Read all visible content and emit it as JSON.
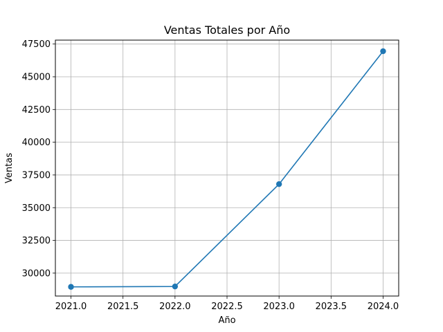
{
  "chart_data": {
    "type": "line",
    "title": "Ventas Totales por Año",
    "xlabel": "Año",
    "ylabel": "Ventas",
    "x": [
      2021,
      2022,
      2023,
      2024
    ],
    "series": [
      {
        "values": [
          28950,
          28980,
          36800,
          46950
        ],
        "color": "#1f77b4",
        "marker": "circle"
      }
    ],
    "xlim": [
      2020.85,
      2024.15
    ],
    "ylim": [
      28250,
      47800
    ],
    "xticks": [
      2021.0,
      2021.5,
      2022.0,
      2022.5,
      2023.0,
      2023.5,
      2024.0
    ],
    "xtick_labels": [
      "2021.0",
      "2021.5",
      "2022.0",
      "2022.5",
      "2023.0",
      "2023.5",
      "2024.0"
    ],
    "yticks": [
      30000,
      32500,
      35000,
      37500,
      40000,
      42500,
      45000,
      47500
    ],
    "ytick_labels": [
      "30000",
      "32500",
      "35000",
      "37500",
      "40000",
      "42500",
      "45000",
      "47500"
    ],
    "grid": true,
    "legend": "none"
  }
}
